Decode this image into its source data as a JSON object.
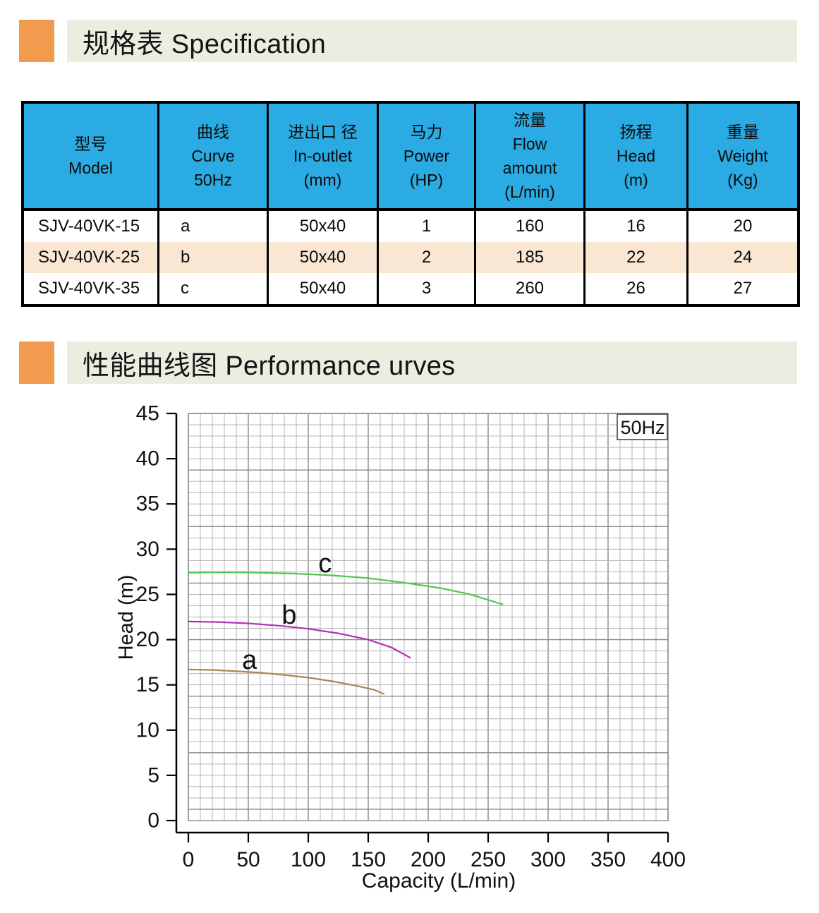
{
  "spec_section": {
    "title": "规格表 Specification"
  },
  "curves_section": {
    "title": "性能曲线图 Performance urves"
  },
  "colors": {
    "accent_orange": "#f29b4f",
    "band_background": "#eaeee0",
    "table_header_blue": "#2aabe3",
    "row_highlight_peach": "#fae7d3",
    "curve_a": "#a8894f",
    "curve_b": "#b332b3",
    "curve_c": "#52c552"
  },
  "table": {
    "columns": [
      {
        "key": "model",
        "lines": [
          "型号",
          "Model"
        ]
      },
      {
        "key": "curve",
        "lines": [
          "曲线",
          "Curve",
          "50Hz"
        ]
      },
      {
        "key": "in-outlet",
        "lines": [
          "进出口 径",
          "In-outlet",
          "(mm)"
        ]
      },
      {
        "key": "power",
        "lines": [
          "马力",
          "Power",
          "(HP)"
        ]
      },
      {
        "key": "flow-amount",
        "lines": [
          "流量",
          "Flow",
          "amount",
          "(L/min)"
        ]
      },
      {
        "key": "head",
        "lines": [
          "扬程",
          "Head",
          "(m)"
        ]
      },
      {
        "key": "weight",
        "lines": [
          "重量",
          "Weight",
          "(Kg)"
        ]
      }
    ],
    "rows": [
      {
        "highlight": false,
        "cells": [
          "SJV-40VK-15",
          "a",
          "50x40",
          "1",
          "160",
          "16",
          "20"
        ]
      },
      {
        "highlight": true,
        "cells": [
          "SJV-40VK-25",
          "b",
          "50x40",
          "2",
          "185",
          "22",
          "24"
        ]
      },
      {
        "highlight": false,
        "cells": [
          "SJV-40VK-35",
          "c",
          "50x40",
          "3",
          "260",
          "26",
          "27"
        ]
      }
    ]
  },
  "chart_data": {
    "type": "line",
    "title": "",
    "xlabel": "Capacity (L/min)",
    "ylabel": "Head (m)",
    "annotation": "50Hz",
    "xlim": [
      0,
      400
    ],
    "ylim": [
      0,
      45
    ],
    "x_ticks": [
      0,
      50,
      100,
      150,
      200,
      250,
      300,
      350,
      400
    ],
    "y_ticks": [
      0,
      5,
      10,
      15,
      20,
      25,
      30,
      35,
      40,
      45
    ],
    "grid": {
      "on": true,
      "minor_x": 10,
      "minor_y": 1.25,
      "major_every": 5
    },
    "legend_position": "none",
    "series": [
      {
        "name": "a",
        "color": "#a8894f",
        "label_pos": [
          51,
          17.7
        ],
        "points": [
          [
            0,
            16.7
          ],
          [
            20,
            16.65
          ],
          [
            40,
            16.5
          ],
          [
            60,
            16.35
          ],
          [
            80,
            16.1
          ],
          [
            100,
            15.8
          ],
          [
            120,
            15.4
          ],
          [
            140,
            14.9
          ],
          [
            155,
            14.45
          ],
          [
            163,
            14.0
          ]
        ]
      },
      {
        "name": "b",
        "color": "#b332b3",
        "label_pos": [
          84,
          22.7
        ],
        "points": [
          [
            0,
            22.0
          ],
          [
            25,
            21.95
          ],
          [
            50,
            21.8
          ],
          [
            75,
            21.55
          ],
          [
            100,
            21.2
          ],
          [
            125,
            20.7
          ],
          [
            150,
            20.0
          ],
          [
            170,
            19.1
          ],
          [
            185,
            18.0
          ]
        ]
      },
      {
        "name": "c",
        "color": "#52c552",
        "label_pos": [
          114,
          28.4
        ],
        "points": [
          [
            0,
            27.4
          ],
          [
            30,
            27.45
          ],
          [
            60,
            27.4
          ],
          [
            90,
            27.3
          ],
          [
            120,
            27.1
          ],
          [
            150,
            26.8
          ],
          [
            180,
            26.3
          ],
          [
            210,
            25.7
          ],
          [
            235,
            25.0
          ],
          [
            262,
            23.9
          ]
        ]
      }
    ]
  }
}
